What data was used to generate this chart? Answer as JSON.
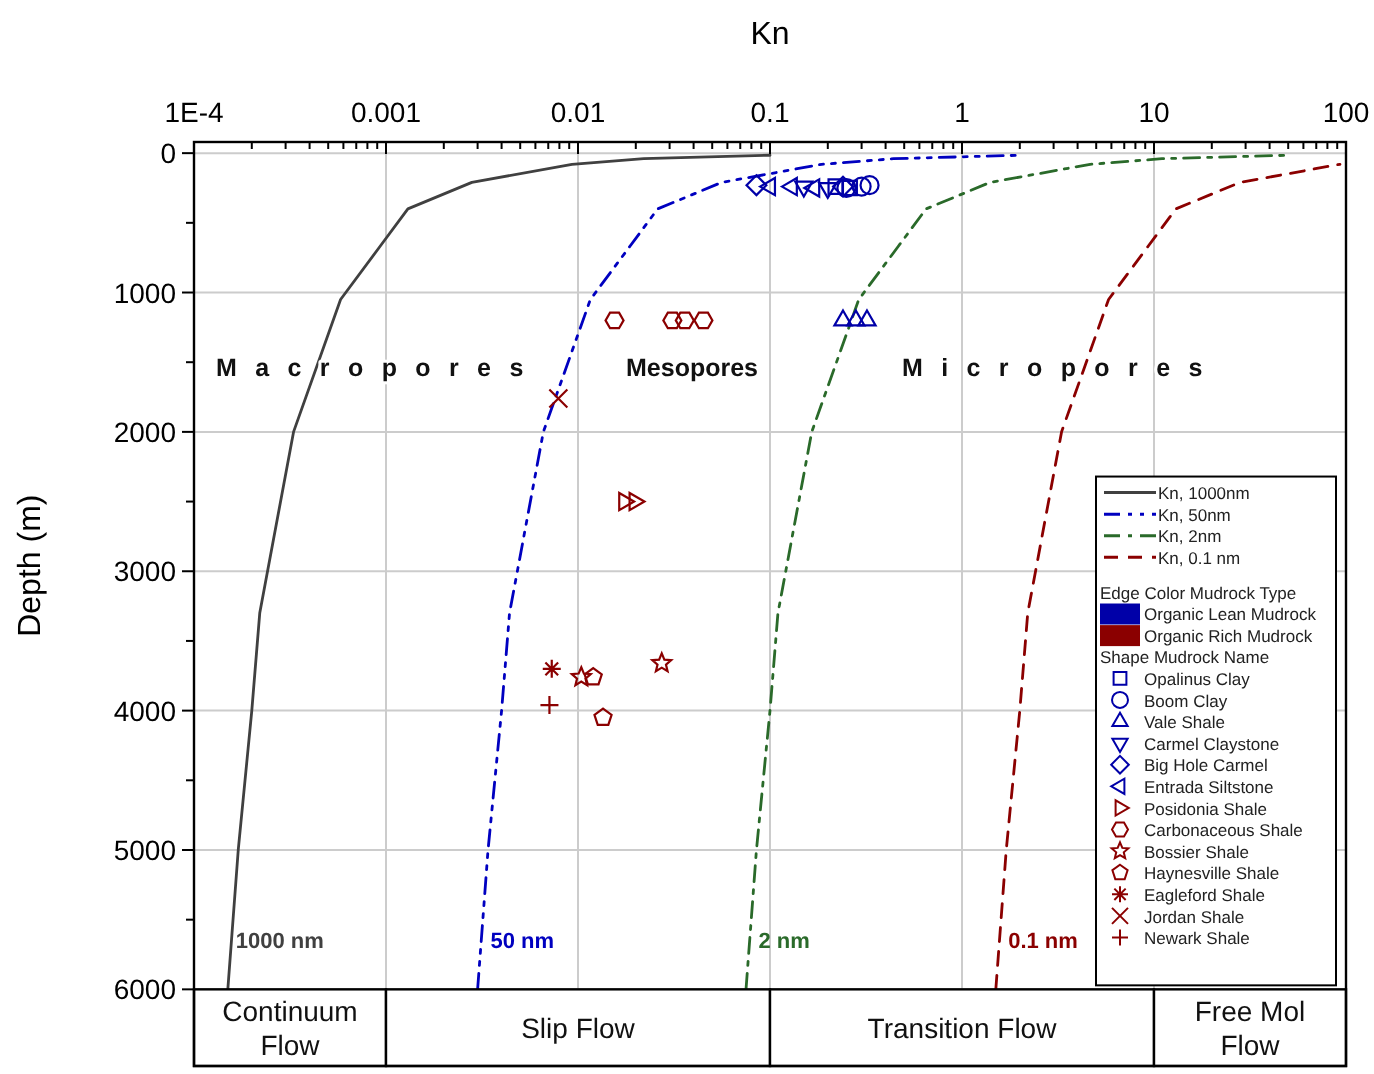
{
  "chart_data": {
    "type": "line",
    "xlabel": "Kn",
    "ylabel": "Depth (m)",
    "log": "x",
    "xlim": [
      0.0001,
      100
    ],
    "ylim": [
      6550,
      -80
    ],
    "xticks": [
      {
        "value": 0.0001,
        "label": "1E-4"
      },
      {
        "value": 0.0002,
        "label": null
      },
      {
        "value": 0.0003,
        "label": null
      },
      {
        "value": 0.0004,
        "label": null
      },
      {
        "value": 0.0005,
        "label": null
      },
      {
        "value": 0.0006,
        "label": null
      },
      {
        "value": 0.0007,
        "label": null
      },
      {
        "value": 0.0008,
        "label": null
      },
      {
        "value": 0.0009,
        "label": null
      },
      0.001,
      {
        "value": 0.002,
        "label": null
      },
      {
        "value": 0.003,
        "label": null
      },
      {
        "value": 0.004,
        "label": null
      },
      {
        "value": 0.005,
        "label": null
      },
      {
        "value": 0.006,
        "label": null
      },
      {
        "value": 0.007,
        "label": null
      },
      {
        "value": 0.008,
        "label": null
      },
      {
        "value": 0.009,
        "label": null
      },
      0.01,
      {
        "value": 0.02,
        "label": null
      },
      {
        "value": 0.03,
        "label": null
      },
      {
        "value": 0.04,
        "label": null
      },
      {
        "value": 0.05,
        "label": null
      },
      {
        "value": 0.06,
        "label": null
      },
      {
        "value": 0.07,
        "label": null
      },
      {
        "value": 0.08,
        "label": null
      },
      {
        "value": 0.09,
        "label": null
      },
      0.1,
      {
        "value": 0.2,
        "label": null
      },
      {
        "value": 0.3,
        "label": null
      },
      {
        "value": 0.4,
        "label": null
      },
      {
        "value": 0.5,
        "label": null
      },
      {
        "value": 0.6,
        "label": null
      },
      {
        "value": 0.7,
        "label": null
      },
      {
        "value": 0.8,
        "label": null
      },
      {
        "value": 0.9,
        "label": null
      },
      1,
      {
        "value": 2,
        "label": null
      },
      {
        "value": 3,
        "label": null
      },
      {
        "value": 4,
        "label": null
      },
      {
        "value": 5,
        "label": null
      },
      {
        "value": 6,
        "label": null
      },
      {
        "value": 7,
        "label": null
      },
      {
        "value": 8,
        "label": null
      },
      {
        "value": 9,
        "label": null
      },
      10,
      {
        "value": 20,
        "label": null
      },
      {
        "value": 30,
        "label": null
      },
      {
        "value": 40,
        "label": null
      },
      {
        "value": 50,
        "label": null
      },
      {
        "value": 60,
        "label": null
      },
      {
        "value": 70,
        "label": null
      },
      {
        "value": 80,
        "label": null
      },
      {
        "value": 90,
        "label": null
      },
      100
    ],
    "yticks": [
      0,
      {
        "value": 500,
        "label": null
      },
      1000,
      {
        "value": 1500,
        "label": null
      },
      2000,
      {
        "value": 2500,
        "label": null
      },
      3000,
      {
        "value": 3500,
        "label": null
      },
      4000,
      {
        "value": 4500,
        "label": null
      },
      5000,
      {
        "value": 5500,
        "label": null
      },
      6000
    ],
    "grid": true,
    "legend": "bottom right",
    "legend_title": "Edge Color  Mudrock Type",
    "series": [
      {
        "name": "Kn, 1000nm",
        "color": "#404040",
        "line_style": "solid",
        "x": [
          0.00015,
          0.00017,
          0.0002,
          0.00022,
          0.00033,
          0.00058,
          0.00093,
          0.0013,
          0.0028,
          0.0093,
          0.022,
          0.1
        ],
        "values": [
          6000,
          5000,
          4000,
          3300,
          2000,
          1050,
          670,
          400,
          210,
          80,
          40,
          15
        ]
      },
      {
        "name": "Kn, 50nm",
        "color": "#0000c0",
        "line_style": "dashdotdot",
        "x": [
          0.003,
          0.0034,
          0.004,
          0.0044,
          0.0066,
          0.0116,
          0.0186,
          0.026,
          0.056,
          0.186,
          0.44,
          2
        ],
        "values": [
          6000,
          5000,
          4000,
          3300,
          2000,
          1050,
          670,
          400,
          210,
          80,
          40,
          15
        ]
      },
      {
        "name": "Kn, 2nm",
        "color": "#2a6a2a",
        "line_style": "dashdot",
        "x": [
          0.075,
          0.085,
          0.1,
          0.11,
          0.165,
          0.29,
          0.465,
          0.65,
          1.4,
          4.65,
          11,
          50
        ],
        "values": [
          6000,
          5000,
          4000,
          3300,
          2000,
          1050,
          670,
          400,
          210,
          80,
          40,
          15
        ]
      },
      {
        "name": "Kn, 0.1 nm",
        "color": "#8b0000",
        "line_style": "dashed",
        "x": [
          1.5,
          1.7,
          2,
          2.2,
          3.3,
          5.8,
          9.3,
          13,
          28,
          93
        ],
        "values": [
          6000,
          5000,
          4000,
          3300,
          2000,
          1050,
          670,
          400,
          210,
          80
        ]
      },
      {
        "name": "Opalinus Clay",
        "type": "scatter",
        "color": "#0000a8",
        "marker": "square",
        "x": [
          0.22,
          0.26
        ],
        "values": [
          240,
          250
        ]
      },
      {
        "name": "Boom Clay",
        "type": "scatter",
        "color": "#0000a8",
        "marker": "circle",
        "x": [
          0.25,
          0.3,
          0.33
        ],
        "values": [
          250,
          240,
          230
        ]
      },
      {
        "name": "Vale Shale",
        "type": "scatter",
        "color": "#0000a8",
        "marker": "triangle",
        "x": [
          0.24,
          0.28,
          0.32
        ],
        "values": [
          1200,
          1200,
          1200
        ]
      },
      {
        "name": "Carmel Claystone",
        "type": "scatter",
        "color": "#0000a8",
        "marker": "triangle-down",
        "x": [
          0.15,
          0.2
        ],
        "values": [
          240,
          250
        ]
      },
      {
        "name": "Big Hole Carmel",
        "type": "scatter",
        "color": "#0000a8",
        "marker": "diamond",
        "x": [
          0.085,
          0.24
        ],
        "values": [
          230,
          240
        ]
      },
      {
        "name": "Entrada Siltstone",
        "type": "scatter",
        "color": "#0000a8",
        "marker": "triangle-left",
        "x": [
          0.1,
          0.13,
          0.17
        ],
        "values": [
          240,
          240,
          250
        ]
      },
      {
        "name": "Posidonia Shale",
        "type": "scatter",
        "color": "#8b0000",
        "marker": "triangle-right",
        "x": [
          0.0174,
          0.0197
        ],
        "values": [
          2500,
          2500
        ]
      },
      {
        "name": "Carbonaceous Shale",
        "type": "scatter",
        "color": "#8b0000",
        "x": [
          0.0155,
          0.031,
          0.036,
          0.045
        ],
        "values": [
          1200,
          1200,
          1200,
          1200
        ]
      },
      {
        "name": "Bossier Shale",
        "type": "scatter",
        "color": "#8b0000",
        "marker": "star",
        "x": [
          0.0104,
          0.0273
        ],
        "values": [
          3760,
          3660
        ]
      },
      {
        "name": "Haynesville Shale",
        "type": "scatter",
        "color": "#8b0000",
        "x": [
          0.012,
          0.0135
        ],
        "values": [
          3760,
          4050
        ]
      },
      {
        "name": "Eagleford Shale",
        "type": "scatter",
        "color": "#8b0000",
        "x": [
          0.0073
        ],
        "values": [
          3700
        ]
      },
      {
        "name": "Jordan Shale",
        "type": "scatter",
        "color": "#8b0000",
        "marker": "cross",
        "x": [
          0.0079
        ],
        "values": [
          1760
        ]
      },
      {
        "name": "Newark Shale",
        "type": "scatter",
        "color": "#8b0000",
        "marker": "plus",
        "x": [
          0.0071
        ],
        "values": [
          3960
        ]
      }
    ],
    "annotations": [
      {
        "text": "1000 nm",
        "x": 0.000165,
        "y": 5700
      },
      {
        "text": "50 nm",
        "x": 0.0035,
        "y": 5700
      },
      {
        "text": "2 nm",
        "x": 0.087,
        "y": 5700
      },
      {
        "text": "0.1 nm",
        "x": 1.74,
        "y": 5700
      },
      "Macropores",
      "Mesopores",
      "Micropores",
      "Organic Lean Mudrock",
      "Organic Rich Mudrock",
      "Shape  Mudrock Name"
    ],
    "bands": [
      {
        "axis": "x",
        "from": 0.0001,
        "to": 0.001,
        "label": "Continuum Flow",
        "color": "#ffffff"
      },
      {
        "axis": "x",
        "from": 0.001,
        "to": 0.1,
        "label": "Slip Flow",
        "color": "#ffffff"
      },
      {
        "axis": "x",
        "from": 0.1,
        "to": 10,
        "label": "Transition Flow",
        "color": "#ffffff"
      },
      {
        "axis": "x",
        "from": 10,
        "to": 100,
        "label": "Free Mol Flow",
        "color": "#ffffff"
      }
    ]
  }
}
